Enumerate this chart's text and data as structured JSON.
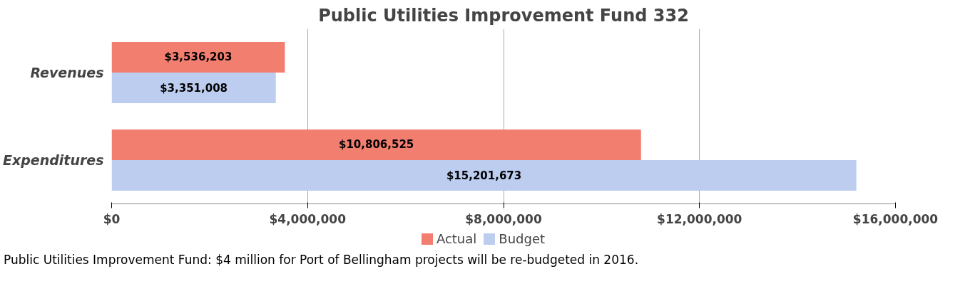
{
  "chart_data": {
    "type": "bar",
    "orientation": "horizontal",
    "title": "Public Utilities Improvement Fund 332",
    "categories": [
      "Revenues",
      "Expenditures"
    ],
    "series": [
      {
        "name": "Actual",
        "color": "#f27e6f",
        "values": [
          3536203,
          10806525
        ],
        "value_labels": [
          "$3,536,203",
          "$10,806,525"
        ]
      },
      {
        "name": "Budget",
        "color": "#bccdf0",
        "values": [
          3351008,
          15201673
        ],
        "value_labels": [
          "$3,351,008",
          "$15,201,673"
        ]
      }
    ],
    "xlim": [
      0,
      16000000
    ],
    "xticks": [
      {
        "value": 0,
        "label": "$0"
      },
      {
        "value": 4000000,
        "label": "$4,000,000"
      },
      {
        "value": 8000000,
        "label": "$8,000,000"
      },
      {
        "value": 12000000,
        "label": "$12,000,000"
      },
      {
        "value": 16000000,
        "label": "$16,000,000"
      }
    ],
    "grid": "x",
    "legend": "bottom",
    "annotations": [
      "Public Utilities Improvement Fund: $4 million for Port of Bellingham projects will be re-budgeted in 2016."
    ]
  }
}
